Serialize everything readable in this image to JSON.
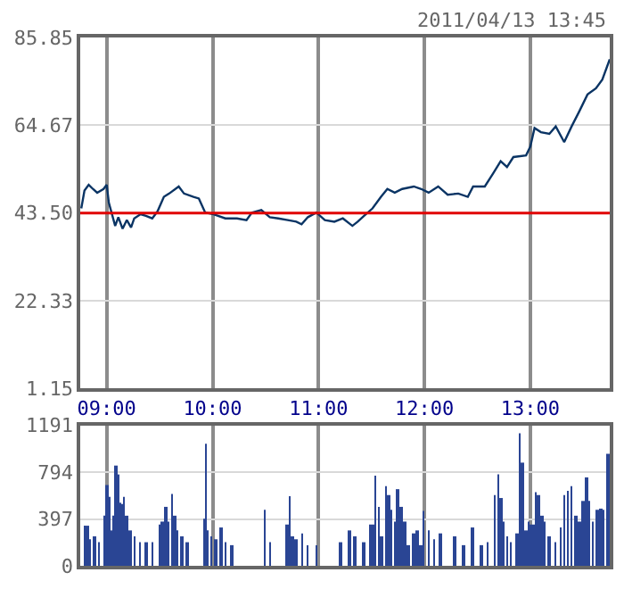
{
  "chart_data": [
    {
      "type": "line",
      "annotations": [
        "2011/04/13 13:45"
      ],
      "xlim": [
        8.75,
        13.75
      ],
      "xticks": [
        {
          "value": 9,
          "label": "09:00"
        },
        {
          "value": 10,
          "label": "10:00"
        },
        {
          "value": 11,
          "label": "11:00"
        },
        {
          "value": 12,
          "label": "12:00"
        },
        {
          "value": 13,
          "label": "13:00"
        }
      ],
      "ylim": [
        1.15,
        85.85
      ],
      "yticks": [
        1.15,
        22.33,
        {
          "value": 43.5,
          "label": "43.50"
        },
        64.67,
        85.85
      ],
      "grid": true,
      "marker": "none",
      "line_style": "solid",
      "ref_lines": [
        {
          "axis": "y",
          "value": 43.5,
          "color": "#e00000"
        }
      ],
      "series": [
        {
          "color": "#0a3464",
          "x": [
            8.76,
            8.79,
            8.83,
            8.87,
            8.91,
            8.97,
            9.0,
            9.02,
            9.08,
            9.11,
            9.15,
            9.19,
            9.23,
            9.26,
            9.32,
            9.37,
            9.43,
            9.48,
            9.54,
            9.59,
            9.68,
            9.73,
            9.82,
            9.87,
            9.93,
            10.01,
            10.12,
            10.23,
            10.32,
            10.37,
            10.46,
            10.54,
            10.62,
            10.71,
            10.79,
            10.84,
            10.9,
            10.98,
            11.06,
            11.15,
            11.23,
            11.32,
            11.37,
            11.43,
            11.51,
            11.59,
            11.65,
            11.72,
            11.79,
            11.9,
            11.97,
            12.04,
            12.13,
            12.22,
            12.32,
            12.41,
            12.46,
            12.57,
            12.65,
            12.72,
            12.78,
            12.84,
            12.96,
            13.0,
            13.04,
            13.1,
            13.18,
            13.24,
            13.32,
            13.39,
            13.46,
            13.54,
            13.62,
            13.68,
            13.75
          ],
          "values": [
            44.6,
            48.9,
            50.3,
            49.3,
            48.4,
            49.3,
            50.3,
            46.0,
            40.4,
            42.5,
            39.7,
            41.8,
            40.0,
            42.2,
            43.2,
            42.8,
            42.2,
            43.9,
            47.4,
            48.2,
            49.9,
            48.2,
            47.4,
            47.0,
            43.6,
            43.2,
            42.2,
            42.2,
            41.8,
            43.6,
            44.2,
            42.5,
            42.2,
            41.8,
            41.4,
            40.8,
            42.5,
            43.6,
            41.8,
            41.4,
            42.2,
            40.4,
            41.4,
            42.8,
            44.6,
            47.4,
            49.3,
            48.4,
            49.3,
            49.9,
            49.3,
            48.4,
            49.9,
            47.9,
            48.2,
            47.4,
            49.9,
            49.9,
            53.1,
            56.0,
            54.6,
            57.0,
            57.4,
            59.5,
            64.0,
            63.0,
            62.6,
            64.4,
            60.6,
            64.4,
            67.9,
            72.1,
            73.6,
            75.7,
            80.6
          ]
        }
      ]
    },
    {
      "type": "bar",
      "xlim": [
        8.75,
        13.75
      ],
      "xticks": [
        {
          "value": 9,
          "label": null
        },
        {
          "value": 10,
          "label": null
        },
        {
          "value": 11,
          "label": null
        },
        {
          "value": 12,
          "label": null
        },
        {
          "value": 13,
          "label": null
        }
      ],
      "ylim": [
        0,
        1191
      ],
      "yticks": [
        0,
        397,
        794,
        1191
      ],
      "grid": true,
      "tick_labels": "y",
      "series": [
        {
          "color": "#2a4594",
          "x": [
            8.789,
            8.817,
            8.844,
            8.889,
            8.928,
            8.975,
            9.0,
            9.017,
            9.039,
            9.061,
            9.083,
            9.1,
            9.122,
            9.144,
            9.161,
            9.189,
            9.222,
            9.261,
            9.317,
            9.372,
            9.428,
            9.5,
            9.522,
            9.556,
            9.583,
            9.617,
            9.639,
            9.667,
            9.706,
            9.761,
            9.917,
            9.933,
            9.956,
            9.989,
            10.028,
            10.078,
            10.122,
            10.178,
            10.494,
            10.539,
            10.706,
            10.728,
            10.756,
            10.789,
            10.844,
            10.9,
            10.983,
            11.206,
            11.289,
            11.344,
            11.428,
            11.483,
            11.511,
            11.533,
            11.567,
            11.594,
            11.639,
            11.661,
            11.689,
            11.722,
            11.744,
            11.778,
            11.817,
            11.844,
            11.9,
            11.933,
            11.967,
            11.989,
            12.039,
            12.094,
            12.15,
            12.289,
            12.372,
            12.456,
            12.539,
            12.594,
            12.667,
            12.694,
            12.722,
            12.75,
            12.778,
            12.817,
            12.872,
            12.9,
            12.928,
            12.956,
            12.983,
            13.0,
            13.028,
            13.05,
            13.078,
            13.106,
            13.133,
            13.178,
            13.233,
            13.289,
            13.317,
            13.356,
            13.389,
            13.428,
            13.467,
            13.5,
            13.528,
            13.556,
            13.594,
            13.633,
            13.667,
            13.694,
            13.733
          ],
          "values": [
            340,
            340,
            225,
            250,
            200,
            425,
            685,
            585,
            300,
            425,
            850,
            775,
            535,
            525,
            585,
            425,
            300,
            250,
            200,
            200,
            200,
            350,
            375,
            500,
            375,
            610,
            425,
            300,
            250,
            200,
            400,
            1035,
            300,
            250,
            225,
            325,
            200,
            175,
            475,
            200,
            350,
            590,
            250,
            225,
            275,
            175,
            175,
            200,
            300,
            250,
            200,
            350,
            350,
            765,
            500,
            250,
            675,
            600,
            475,
            375,
            650,
            500,
            375,
            175,
            275,
            300,
            175,
            465,
            300,
            225,
            275,
            250,
            175,
            325,
            175,
            200,
            600,
            775,
            575,
            375,
            250,
            200,
            275,
            1125,
            875,
            300,
            375,
            350,
            350,
            625,
            600,
            425,
            375,
            250,
            200,
            325,
            600,
            635,
            675,
            425,
            375,
            550,
            750,
            550,
            375,
            475,
            485,
            475,
            950
          ]
        }
      ]
    }
  ]
}
